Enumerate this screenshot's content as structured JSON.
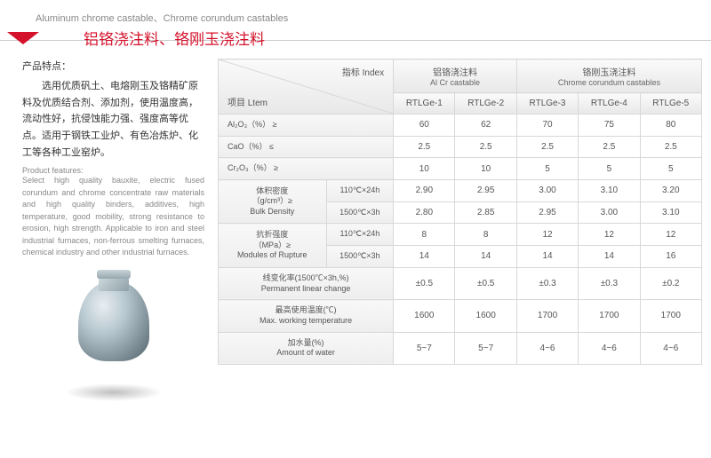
{
  "header": {
    "title_en": "Aluminum chrome castable、Chrome corundum castables",
    "title_cn": "铝铬浇注料、铬刚玉浇注料"
  },
  "features": {
    "title_cn": "产品特点：",
    "text_cn": "选用优质矾土、电熔刚玉及铬精矿原料及优质结合剂、添加剂，使用温度高，流动性好，抗侵蚀能力强、强度高等优点。适用于钢铁工业炉、有色冶炼炉、化工等各种工业窑炉。",
    "title_en": "Product features:",
    "text_en": "Select high quality bauxite, electric fused corundum and chrome concentrate raw materials and high quality binders, additives, high temperature, good mobility, strong resistance to erosion, high strength. Applicable to iron and steel industrial furnaces, non-ferrous smelting furnaces, chemical industry and other industrial furnaces."
  },
  "table": {
    "index_label": "指标 Index",
    "item_label": "项目 Ltem",
    "group1_cn": "铝铬浇注料",
    "group1_en": "Al Cr castable",
    "group2_cn": "铬刚玉浇注料",
    "group2_en": "Chrome corundum castables",
    "cols": [
      "RTLGe-1",
      "RTLGe-2",
      "RTLGe-3",
      "RTLGe-4",
      "RTLGe-5"
    ],
    "rows": [
      {
        "label": "Al₂O₃（%） ≥",
        "v": [
          "60",
          "62",
          "70",
          "75",
          "80"
        ]
      },
      {
        "label": "CaO（%） ≤",
        "v": [
          "2.5",
          "2.5",
          "2.5",
          "2.5",
          "2.5"
        ]
      },
      {
        "label": "Cr₂O₃（%） ≥",
        "v": [
          "10",
          "10",
          "5",
          "5",
          "5"
        ]
      }
    ],
    "bulk": {
      "label_cn": "体积密度",
      "label_unit": "（g/cm³）≥",
      "label_en": "Bulk Density",
      "cond1": "110℃×24h",
      "cond2": "1500℃×3h",
      "r1": [
        "2.90",
        "2.95",
        "3.00",
        "3.10",
        "3.20"
      ],
      "r2": [
        "2.80",
        "2.85",
        "2.95",
        "3.00",
        "3.10"
      ]
    },
    "rupture": {
      "label_cn": "抗折强度",
      "label_unit": "（MPa）≥",
      "label_en": "Modules of Rupture",
      "cond1": "110℃×24h",
      "cond2": "1500℃×3h",
      "r1": [
        "8",
        "8",
        "12",
        "12",
        "12"
      ],
      "r2": [
        "14",
        "14",
        "14",
        "14",
        "16"
      ]
    },
    "linear": {
      "label_cn": "线变化率(1500℃×3h,%)",
      "label_en": "Permanent linear change",
      "v": [
        "±0.5",
        "±0.5",
        "±0.3",
        "±0.3",
        "±0.2"
      ]
    },
    "maxtemp": {
      "label_cn": "最高使用温度(℃)",
      "label_en": "Max. working temperature",
      "v": [
        "1600",
        "1600",
        "1700",
        "1700",
        "1700"
      ]
    },
    "water": {
      "label_cn": "加水量(%)",
      "label_en": "Amount of water",
      "v": [
        "5~7",
        "5~7",
        "4~6",
        "4~6",
        "4~6"
      ]
    }
  }
}
